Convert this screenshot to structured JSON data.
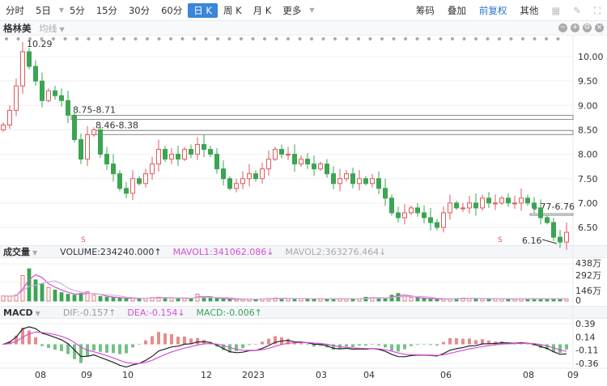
{
  "toolbar": {
    "tabs": [
      "分时",
      "5日",
      "5分",
      "15分",
      "30分",
      "60分",
      "日 K",
      "周 K",
      "月 K",
      "更多"
    ],
    "active": "日 K",
    "right": [
      "筹码",
      "叠加",
      "前复权",
      "其他"
    ]
  },
  "stock": {
    "name": "格林美",
    "ma_label": "均线"
  },
  "volume_header": {
    "label": "成交量",
    "volume": "VOLUME:234240.000↑",
    "mavol1": "MAVOL1:341062.086↓",
    "mavol2": "MAVOL2:363276.464↓"
  },
  "macd_header": {
    "label": "MACD",
    "dif": "DIF:-0.157↑",
    "dea": "DEA:-0.154↓",
    "macd": "MACD:-0.006↑"
  },
  "colors": {
    "up": "#e0585b",
    "down": "#3aa552",
    "mavol1": "#d64fd2",
    "dea": "#d64fd2",
    "macd": "#3aa552",
    "dif": "#222"
  },
  "chart_data": {
    "type": "candlestick",
    "price_axis": {
      "ticks": [
        "10.00",
        "9.50",
        "9.00",
        "8.50",
        "8.00",
        "7.50",
        "7.00",
        "6.50"
      ],
      "values": [
        10,
        9.5,
        9,
        8.5,
        8,
        7.5,
        7,
        6.5
      ]
    },
    "volume_axis": {
      "ticks": [
        "438万",
        "292万",
        "146万",
        "0"
      ],
      "values": [
        438,
        292,
        146,
        0
      ]
    },
    "macd_axis": {
      "ticks": [
        "0.39",
        "0.14",
        "-0.11",
        "-0.36"
      ],
      "values": [
        0.39,
        0.14,
        -0.11,
        -0.36
      ]
    },
    "date_labels": [
      "08",
      "09",
      "10",
      "12",
      "2023",
      "03",
      "04",
      "06",
      "08",
      "09"
    ],
    "annotations": {
      "high": "10.29",
      "low": "6.16",
      "zone1": "8.75-8.71",
      "zone2": "8.46-8.38",
      "zone3": "6.77-6.76",
      "signal": "S"
    },
    "closes": [
      8.6,
      8.9,
      9.4,
      10.1,
      9.8,
      9.5,
      9.1,
      9.3,
      9.2,
      9.1,
      8.8,
      8.3,
      7.9,
      8.4,
      8.5,
      8.0,
      7.8,
      7.6,
      7.3,
      7.2,
      7.5,
      7.4,
      7.6,
      7.8,
      8.1,
      7.9,
      8.0,
      7.9,
      8.1,
      8.0,
      8.2,
      8.1,
      8.0,
      7.7,
      7.5,
      7.3,
      7.4,
      7.5,
      7.6,
      7.5,
      7.7,
      7.9,
      8.1,
      8.0,
      8.0,
      7.8,
      7.9,
      7.8,
      7.7,
      7.8,
      7.6,
      7.4,
      7.5,
      7.6,
      7.4,
      7.5,
      7.4,
      7.5,
      7.3,
      7.1,
      6.8,
      6.7,
      6.8,
      6.9,
      6.8,
      6.7,
      6.6,
      6.5,
      6.8,
      7.0,
      6.9,
      6.9,
      7.0,
      6.9,
      7.1,
      7.0,
      7.0,
      7.1,
      7.0,
      7.0,
      7.1,
      7.0,
      6.9,
      6.7,
      6.6,
      6.3,
      6.2,
      6.4
    ],
    "volumes_wan": [
      60,
      55,
      70,
      300,
      380,
      250,
      200,
      160,
      130,
      100,
      80,
      70,
      90,
      110,
      70,
      55,
      45,
      40,
      35,
      30,
      32,
      30,
      35,
      40,
      45,
      38,
      35,
      30,
      32,
      30,
      80,
      40,
      35,
      30,
      25,
      22,
      20,
      22,
      24,
      22,
      25,
      30,
      35,
      30,
      28,
      26,
      30,
      28,
      25,
      30,
      28,
      25,
      26,
      30,
      28,
      26,
      45,
      40,
      30,
      35,
      70,
      90,
      50,
      40,
      35,
      30,
      25,
      22,
      24,
      28,
      30,
      35,
      30,
      28,
      25,
      30,
      28,
      26,
      24,
      22,
      25,
      28,
      30,
      26,
      24,
      30,
      28,
      25
    ]
  }
}
